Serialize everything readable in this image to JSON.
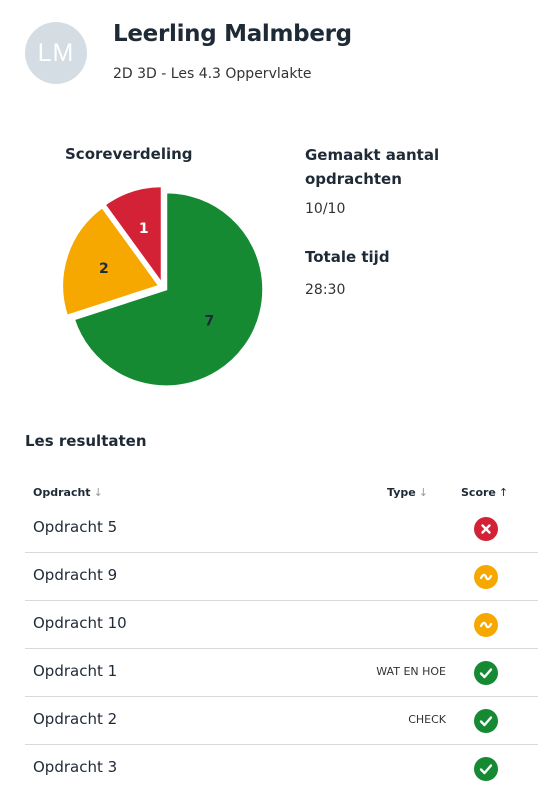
{
  "header": {
    "avatar_initials": "LM",
    "student_name": "Leerling Malmberg",
    "lesson": "2D 3D - Les 4.3 Oppervlakte"
  },
  "colors": {
    "incorrect": "#d32236",
    "partial": "#f6a800",
    "correct": "#158a33",
    "avatar_bg": "#d3dde3"
  },
  "chart_data": {
    "type": "pie",
    "title": "Scoreverdeling",
    "categories": [
      "correct",
      "partial",
      "incorrect"
    ],
    "values": [
      7,
      2,
      1
    ],
    "colors": [
      "#158a33",
      "#f6a800",
      "#d32236"
    ],
    "labels": [
      "7",
      "2",
      "1"
    ]
  },
  "stats": {
    "made_label": "Gemaakt aantal opdrachten",
    "made_value": "10/10",
    "time_label": "Totale tijd",
    "time_value": "28:30"
  },
  "results": {
    "title": "Les resultaten",
    "columns": {
      "assignment": "Opdracht",
      "type": "Type",
      "score": "Score",
      "assignment_sort": "↓",
      "type_sort": "↓",
      "score_sort": "↑"
    },
    "rows": [
      {
        "title": "Opdracht 5",
        "type": "",
        "score": "incorrect",
        "score_icon": "cross-icon"
      },
      {
        "title": "Opdracht 9",
        "type": "",
        "score": "partial",
        "score_icon": "tilde-icon"
      },
      {
        "title": "Opdracht 10",
        "type": "",
        "score": "partial",
        "score_icon": "tilde-icon"
      },
      {
        "title": "Opdracht 1",
        "type": "WAT EN HOE",
        "score": "correct",
        "score_icon": "check-icon"
      },
      {
        "title": "Opdracht 2",
        "type": "CHECK",
        "score": "correct",
        "score_icon": "check-icon"
      },
      {
        "title": "Opdracht 3",
        "type": "",
        "score": "correct",
        "score_icon": "check-icon"
      }
    ]
  }
}
